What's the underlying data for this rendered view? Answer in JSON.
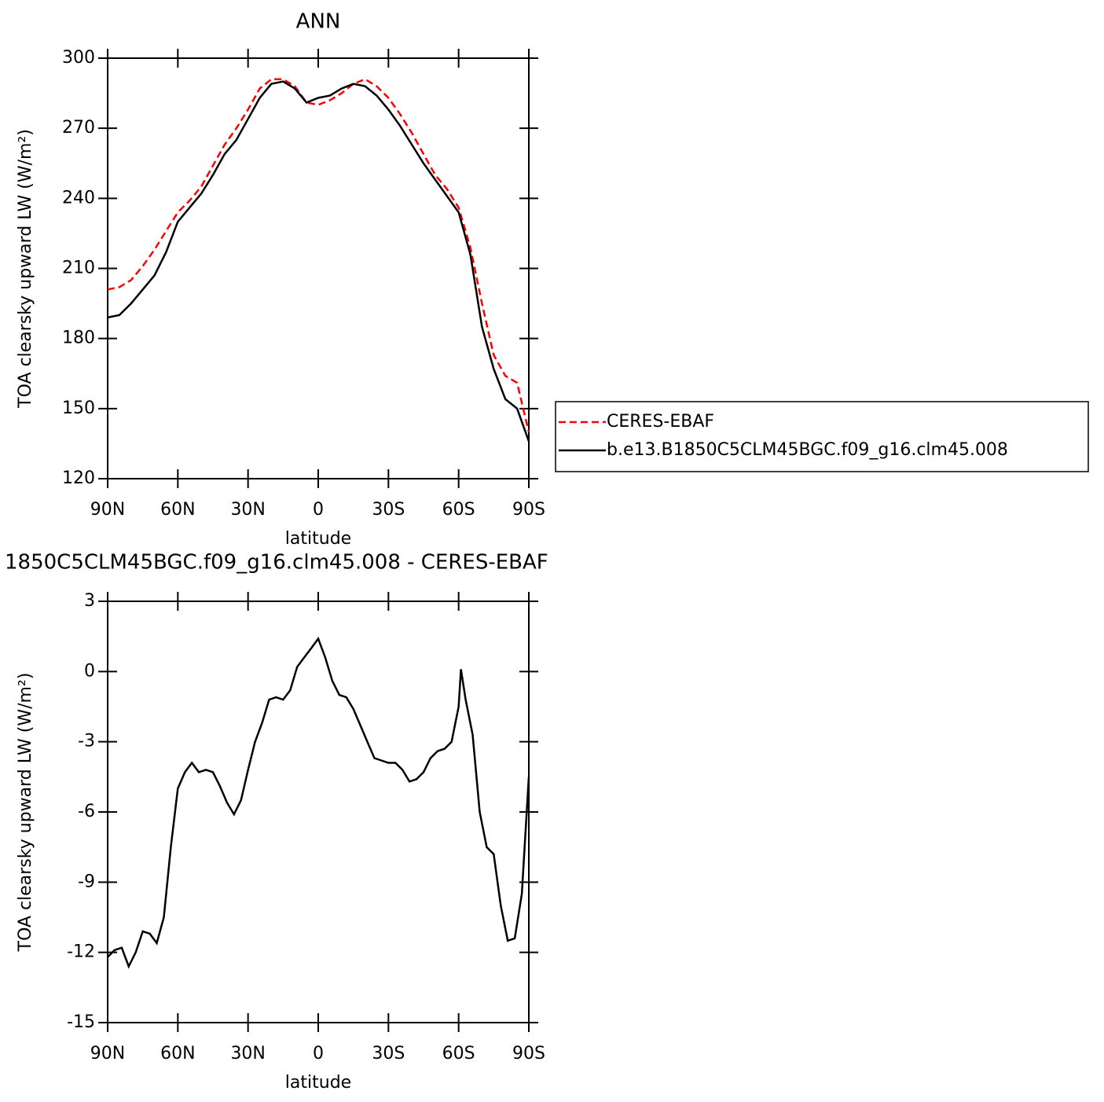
{
  "chart_data": [
    {
      "type": "line",
      "title": "ANN",
      "xlabel": "latitude",
      "ylabel": "TOA clearsky upward LW (W/m²)",
      "x": [
        90,
        85,
        80,
        75,
        70,
        65,
        60,
        55,
        50,
        45,
        40,
        35,
        30,
        25,
        20,
        15,
        10,
        5,
        0,
        -5,
        -10,
        -15,
        -20,
        -25,
        -30,
        -35,
        -40,
        -45,
        -50,
        -55,
        -60,
        -65,
        -70,
        -75,
        -80,
        -85,
        -90
      ],
      "series": [
        {
          "name": "CERES-EBAF",
          "color": "#ff0000",
          "style": "dashed",
          "values": [
            201,
            202,
            205,
            211,
            218,
            226,
            234,
            239,
            245,
            254,
            263,
            270,
            278,
            287,
            291,
            291,
            288,
            281,
            280,
            282,
            285,
            289,
            291,
            288,
            283,
            276,
            268,
            259,
            250,
            244,
            236,
            219,
            195,
            173,
            164,
            161,
            140
          ]
        },
        {
          "name": "b.e13.B1850C5CLM45BGC.f09_g16.clm45.008",
          "color": "#000000",
          "style": "solid",
          "values": [
            189,
            190,
            195,
            201,
            207,
            217,
            230,
            236,
            242,
            250,
            259,
            265,
            274,
            283,
            289,
            290,
            287,
            281,
            283,
            284,
            287,
            289,
            288,
            284,
            278,
            271,
            263,
            255,
            248,
            241,
            234,
            216,
            185,
            167,
            154,
            150,
            136
          ]
        }
      ],
      "xlim": [
        90,
        -90
      ],
      "xticks": [
        {
          "value": 90,
          "label": "90N"
        },
        {
          "value": 60,
          "label": "60N"
        },
        {
          "value": 30,
          "label": "30N"
        },
        0,
        {
          "value": -30,
          "label": "30S"
        },
        {
          "value": -60,
          "label": "60S"
        },
        {
          "value": -90,
          "label": "90S"
        }
      ],
      "ylim": [
        120,
        300
      ],
      "yticks": [
        120,
        150,
        180,
        210,
        240,
        270,
        300
      ],
      "legend": "right"
    },
    {
      "type": "line",
      "title": "1850C5CLM45BGC.f09_g16.clm45.008 - CERES-EBAF",
      "xlabel": "latitude",
      "ylabel": "TOA clearsky upward LW (W/m²)",
      "x": [
        90,
        87,
        84,
        81,
        78,
        75,
        72,
        69,
        66,
        63,
        60,
        57,
        54,
        51,
        48,
        45,
        42,
        39,
        36,
        33,
        30,
        27,
        24,
        21,
        18,
        15,
        12,
        9,
        6,
        3,
        0,
        -3,
        -6,
        -9,
        -12,
        -15,
        -18,
        -21,
        -24,
        -27,
        -30,
        -33,
        -36,
        -39,
        -42,
        -45,
        -48,
        -51,
        -54,
        -57,
        -60,
        -61,
        -63,
        -66,
        -69,
        -72,
        -75,
        -78,
        -81,
        -84,
        -87,
        -90
      ],
      "series": [
        {
          "color": "#000000",
          "style": "solid",
          "values": [
            -12.2,
            -11.9,
            -11.8,
            -12.6,
            -12.0,
            -11.1,
            -11.2,
            -11.6,
            -10.5,
            -7.5,
            -5.0,
            -4.3,
            -3.9,
            -4.3,
            -4.2,
            -4.3,
            -4.9,
            -5.6,
            -6.1,
            -5.5,
            -4.2,
            -3.0,
            -2.2,
            -1.2,
            -1.1,
            -1.2,
            -0.8,
            0.2,
            0.6,
            1.0,
            1.4,
            0.6,
            -0.4,
            -1.0,
            -1.1,
            -1.6,
            -2.3,
            -3.0,
            -3.7,
            -3.8,
            -3.9,
            -3.9,
            -4.2,
            -4.7,
            -4.6,
            -4.3,
            -3.7,
            -3.4,
            -3.3,
            -3.0,
            -1.5,
            0.1,
            -1.2,
            -2.7,
            -6.0,
            -7.5,
            -7.8,
            -10.0,
            -11.5,
            -11.4,
            -9.5,
            -4.5
          ]
        }
      ],
      "xlim": [
        90,
        -90
      ],
      "xticks": [
        {
          "value": 90,
          "label": "90N"
        },
        {
          "value": 60,
          "label": "60N"
        },
        {
          "value": 30,
          "label": "30N"
        },
        0,
        {
          "value": -30,
          "label": "30S"
        },
        {
          "value": -60,
          "label": "60S"
        },
        {
          "value": -90,
          "label": "90S"
        }
      ],
      "ylim": [
        -15,
        3
      ],
      "yticks": [
        -15,
        -12,
        -9,
        -6,
        -3,
        0,
        3
      ]
    }
  ]
}
